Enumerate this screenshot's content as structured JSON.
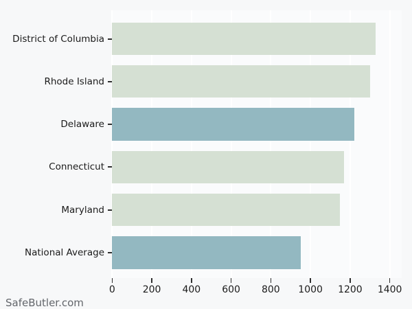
{
  "watermark": "SafeButler.com",
  "chart_data": {
    "type": "bar",
    "orientation": "horizontal",
    "title": "",
    "xlabel": "",
    "ylabel": "",
    "categories": [
      "District of Columbia",
      "Rhode Island",
      "Delaware",
      "Connecticut",
      "Maryland",
      "National Average"
    ],
    "values": [
      1330,
      1300,
      1220,
      1170,
      1150,
      950
    ],
    "bar_colors": [
      "#d5e0d3",
      "#d5e0d3",
      "#93b8c1",
      "#d5e0d3",
      "#d5e0d3",
      "#93b8c1"
    ],
    "x_ticks": [
      0,
      200,
      400,
      600,
      800,
      1000,
      1200,
      1400
    ],
    "xlim": [
      0,
      1460
    ],
    "grid": "vertical-white-gridlines",
    "legend": null,
    "colors": {
      "bar_default": "#d5e0d3",
      "bar_highlight": "#93b8c1",
      "background": "#f7f8f9",
      "plot_background": "#fafbfc",
      "gridline": "#ffffff",
      "tick_text": "#1a1a1a",
      "watermark_text": "#63666b"
    }
  }
}
